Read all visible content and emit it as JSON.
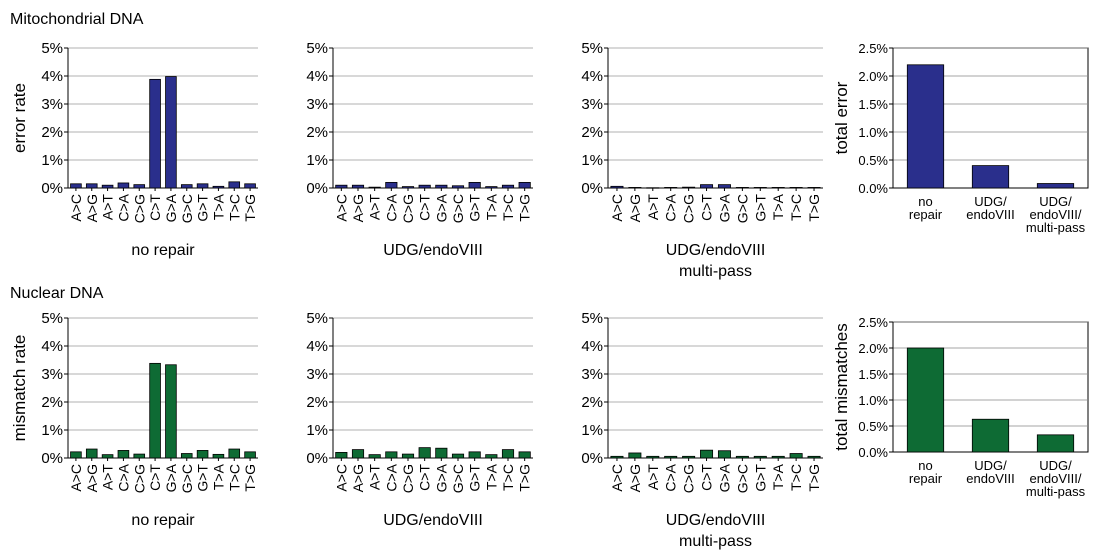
{
  "sections": [
    {
      "title": "Mitochondrial DNA"
    },
    {
      "title": "Nuclear DNA"
    }
  ],
  "chart_data": [
    {
      "type": "bar",
      "row": 0,
      "col": 0,
      "color": "#2a2f8c",
      "title": "",
      "xlabel": [
        "no repair"
      ],
      "ylabel": "error rate",
      "ylim": [
        0,
        5
      ],
      "yticks": [
        0,
        1,
        2,
        3,
        4,
        5
      ],
      "ytick_labels": [
        "0%",
        "1%",
        "2%",
        "3%",
        "4%",
        "5%"
      ],
      "categories": [
        "A>C",
        "A>G",
        "A>T",
        "C>A",
        "C>G",
        "C>T",
        "G>A",
        "G>C",
        "G>T",
        "T>A",
        "T>C",
        "T>G"
      ],
      "values": [
        0.15,
        0.15,
        0.1,
        0.18,
        0.12,
        3.88,
        3.98,
        0.12,
        0.15,
        0.06,
        0.22,
        0.15
      ]
    },
    {
      "type": "bar",
      "row": 0,
      "col": 1,
      "color": "#2a2f8c",
      "title": "",
      "xlabel": [
        "UDG/endoVIII"
      ],
      "ylabel": "",
      "ylim": [
        0,
        5
      ],
      "yticks": [
        0,
        1,
        2,
        3,
        4,
        5
      ],
      "ytick_labels": [
        "0%",
        "1%",
        "2%",
        "3%",
        "4%",
        "5%"
      ],
      "categories": [
        "A>C",
        "A>G",
        "A>T",
        "C>A",
        "C>G",
        "C>T",
        "G>A",
        "G>C",
        "G>T",
        "T>A",
        "T>C",
        "T>G"
      ],
      "values": [
        0.1,
        0.1,
        0.03,
        0.2,
        0.05,
        0.1,
        0.1,
        0.08,
        0.2,
        0.05,
        0.1,
        0.2
      ]
    },
    {
      "type": "bar",
      "row": 0,
      "col": 2,
      "color": "#2a2f8c",
      "title": "",
      "xlabel": [
        "UDG/endoVIII",
        "multi-pass"
      ],
      "ylabel": "",
      "ylim": [
        0,
        5
      ],
      "yticks": [
        0,
        1,
        2,
        3,
        4,
        5
      ],
      "ytick_labels": [
        "0%",
        "1%",
        "2%",
        "3%",
        "4%",
        "5%"
      ],
      "categories": [
        "A>C",
        "A>G",
        "A>T",
        "C>A",
        "C>G",
        "C>T",
        "G>A",
        "G>C",
        "G>T",
        "T>A",
        "T>C",
        "T>G"
      ],
      "values": [
        0.06,
        0.02,
        0.01,
        0.02,
        0.03,
        0.12,
        0.12,
        0.02,
        0.02,
        0.02,
        0.02,
        0.02
      ]
    },
    {
      "type": "bar",
      "row": 0,
      "col": 3,
      "color": "#2a2f8c",
      "summary": true,
      "title": "",
      "xlabel": [],
      "ylabel": "total error",
      "ylim": [
        0,
        2.5
      ],
      "yticks": [
        0,
        0.5,
        1,
        1.5,
        2,
        2.5
      ],
      "ytick_labels": [
        "0.0%",
        "0.5%",
        "1.0%",
        "1.5%",
        "2.0%",
        "2.5%"
      ],
      "categories": [
        [
          "no",
          "repair"
        ],
        [
          "UDG/",
          "endoVIII"
        ],
        [
          "UDG/",
          "endoVIII/",
          "multi-pass"
        ]
      ],
      "values": [
        2.2,
        0.4,
        0.08
      ]
    },
    {
      "type": "bar",
      "row": 1,
      "col": 0,
      "color": "#0e6b34",
      "title": "",
      "xlabel": [
        "no repair"
      ],
      "ylabel": "mismatch rate",
      "ylim": [
        0,
        5
      ],
      "yticks": [
        0,
        1,
        2,
        3,
        4,
        5
      ],
      "ytick_labels": [
        "0%",
        "1%",
        "2%",
        "3%",
        "4%",
        "5%"
      ],
      "categories": [
        "A>C",
        "A>G",
        "A>T",
        "C>A",
        "C>G",
        "C>T",
        "G>A",
        "G>C",
        "G>T",
        "T>A",
        "T>C",
        "T>G"
      ],
      "values": [
        0.22,
        0.32,
        0.12,
        0.27,
        0.14,
        3.38,
        3.33,
        0.16,
        0.27,
        0.13,
        0.32,
        0.22
      ]
    },
    {
      "type": "bar",
      "row": 1,
      "col": 1,
      "color": "#0e6b34",
      "title": "",
      "xlabel": [
        "UDG/endoVIII"
      ],
      "ylabel": "",
      "ylim": [
        0,
        5
      ],
      "yticks": [
        0,
        1,
        2,
        3,
        4,
        5
      ],
      "ytick_labels": [
        "0%",
        "1%",
        "2%",
        "3%",
        "4%",
        "5%"
      ],
      "categories": [
        "A>C",
        "A>G",
        "A>T",
        "C>A",
        "C>G",
        "C>T",
        "G>A",
        "G>C",
        "G>T",
        "T>A",
        "T>C",
        "T>G"
      ],
      "values": [
        0.2,
        0.3,
        0.12,
        0.22,
        0.14,
        0.37,
        0.35,
        0.14,
        0.22,
        0.12,
        0.3,
        0.22
      ]
    },
    {
      "type": "bar",
      "row": 1,
      "col": 2,
      "color": "#0e6b34",
      "title": "",
      "xlabel": [
        "UDG/endoVIII",
        "multi-pass"
      ],
      "ylabel": "",
      "ylim": [
        0,
        5
      ],
      "yticks": [
        0,
        1,
        2,
        3,
        4,
        5
      ],
      "ytick_labels": [
        "0%",
        "1%",
        "2%",
        "3%",
        "4%",
        "5%"
      ],
      "categories": [
        "A>C",
        "A>G",
        "A>T",
        "C>A",
        "C>G",
        "C>T",
        "G>A",
        "G>C",
        "G>T",
        "T>A",
        "T>C",
        "T>G"
      ],
      "values": [
        0.06,
        0.18,
        0.06,
        0.06,
        0.06,
        0.28,
        0.26,
        0.06,
        0.06,
        0.06,
        0.16,
        0.06
      ]
    },
    {
      "type": "bar",
      "row": 1,
      "col": 3,
      "color": "#0e6b34",
      "summary": true,
      "title": "",
      "xlabel": [],
      "ylabel": "total mismatches",
      "ylim": [
        0,
        2.5
      ],
      "yticks": [
        0,
        0.5,
        1,
        1.5,
        2,
        2.5
      ],
      "ytick_labels": [
        "0.0%",
        "0.5%",
        "1.0%",
        "1.5%",
        "2.0%",
        "2.5%"
      ],
      "categories": [
        [
          "no",
          "repair"
        ],
        [
          "UDG/",
          "endoVIII"
        ],
        [
          "UDG/",
          "endoVIII/",
          "multi-pass"
        ]
      ],
      "values": [
        2.0,
        0.63,
        0.33
      ]
    }
  ]
}
